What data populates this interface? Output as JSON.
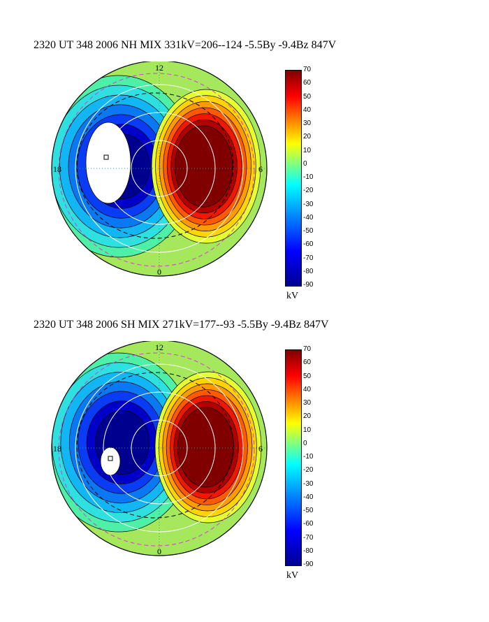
{
  "chart_data": [
    {
      "type": "heatmap",
      "title": "2320 UT 348 2006 NH MIX 331kV=206--124 -5.5By -9.4Bz 847V",
      "clock_labels": [
        "12",
        "18",
        "6",
        "0"
      ],
      "colorbar": {
        "ticks": [
          "70",
          "60",
          "50",
          "40",
          "30",
          "20",
          "10",
          "0",
          "-10",
          "-20",
          "-30",
          "-40",
          "-50",
          "-60",
          "-70",
          "-80",
          "-90"
        ],
        "unit": "kV",
        "range": [
          -90,
          70
        ]
      },
      "potential_max": 206,
      "potential_min": -124,
      "colors": {
        "low": "#00008f",
        "zero": "#80ff80",
        "high": "#800000",
        "saturated_low": "#ffffff"
      }
    },
    {
      "type": "heatmap",
      "title": "2320 UT 348 2006 SH MIX 271kV=177--93 -5.5By -9.4Bz 847V",
      "clock_labels": [
        "12",
        "18",
        "6",
        "0"
      ],
      "colorbar": {
        "ticks": [
          "70",
          "60",
          "50",
          "40",
          "30",
          "20",
          "10",
          "0",
          "-10",
          "-20",
          "-30",
          "-40",
          "-50",
          "-60",
          "-70",
          "-80",
          "-90"
        ],
        "unit": "kV",
        "range": [
          -90,
          70
        ]
      },
      "potential_max": 177,
      "potential_min": -93,
      "colors": {
        "low": "#00008f",
        "zero": "#80ff80",
        "high": "#800000",
        "saturated_low": "#ffffff"
      }
    }
  ]
}
